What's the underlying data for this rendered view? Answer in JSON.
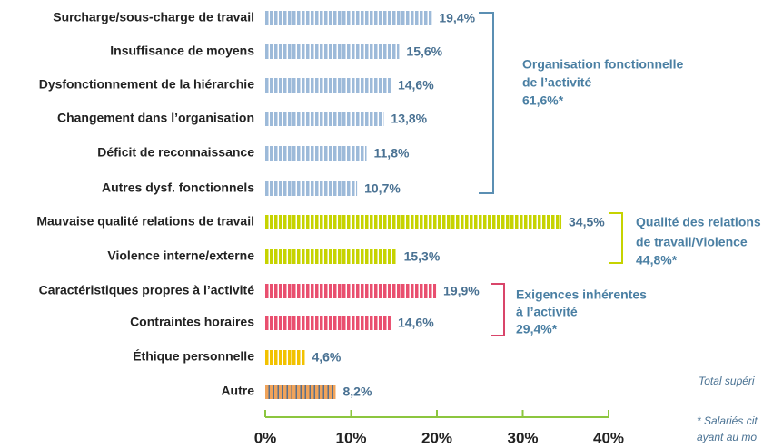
{
  "chart_data": {
    "type": "bar",
    "orientation": "horizontal",
    "categories": [
      "Surcharge/sous-charge de travail",
      "Insuffisance de moyens",
      "Dysfonctionnement de la hiérarchie",
      "Changement dans l’organisation",
      "Déficit de reconnaissance",
      "Autres dysf. fonctionnels",
      "Mauvaise qualité relations de travail",
      "Violence interne/externe",
      "Caractéristiques propres à l’activité",
      "Contraintes horaires",
      "Éthique personnelle",
      "Autre"
    ],
    "values": [
      19.4,
      15.6,
      14.6,
      13.8,
      11.8,
      10.7,
      34.5,
      15.3,
      19.9,
      14.6,
      4.6,
      8.2
    ],
    "value_labels": [
      "19,4%",
      "15,6%",
      "14,6%",
      "13,8%",
      "11,8%",
      "10,7%",
      "34,5%",
      "15,3%",
      "19,9%",
      "14,6%",
      "4,6%",
      "8,2%"
    ],
    "colors": [
      "#9dbad9",
      "#9dbad9",
      "#9dbad9",
      "#9dbad9",
      "#9dbad9",
      "#9dbad9",
      "#c6d300",
      "#c6d300",
      "#e94f6f",
      "#e94f6f",
      "#f2c200",
      "#f0a35a"
    ],
    "xlim": [
      0,
      40
    ],
    "xticks": [
      {
        "value": 0,
        "label": "0%"
      },
      {
        "value": 10,
        "label": "10%"
      },
      {
        "value": 20,
        "label": "20%"
      },
      {
        "value": 30,
        "label": "30%"
      },
      {
        "value": 40,
        "label": "40%"
      }
    ],
    "groups": [
      {
        "lines": [
          "Organisation fonctionnelle",
          "de l’activité",
          "61,6%*"
        ],
        "color": "#5b8fb3"
      },
      {
        "lines": [
          "Qualité des relations",
          "de travail/Violence",
          "44,8%*"
        ],
        "color": "#c6d300"
      },
      {
        "lines": [
          "Exigences inhérentes",
          "à l’activité",
          "29,4%*"
        ],
        "color": "#d9456a"
      }
    ],
    "notes": [
      "Total supéri",
      "* Salariés cit",
      "ayant au mo"
    ]
  }
}
